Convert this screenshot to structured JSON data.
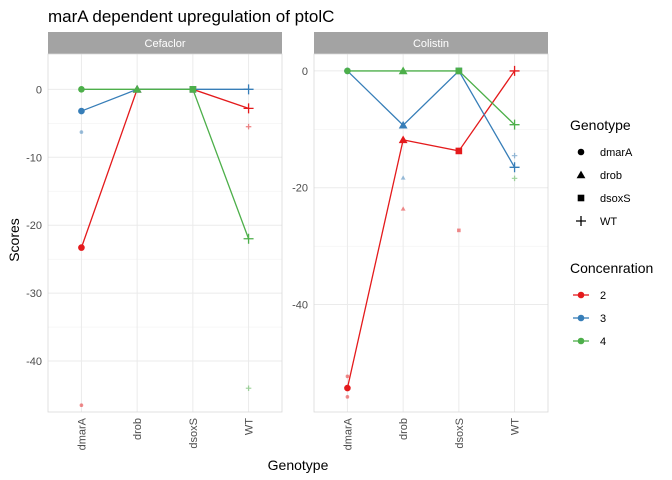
{
  "chart_data": {
    "type": "line",
    "title": "marA dependent upregulation of ptolC",
    "xlabel": "Genotype",
    "ylabel": "Scores",
    "categories": [
      "dmarA",
      "drob",
      "dsoxS",
      "WT"
    ],
    "grid": true,
    "legend_position": "right",
    "legends": [
      {
        "title": "Genotype",
        "kind": "shape",
        "entries": [
          {
            "label": "dmarA",
            "shape": "circle"
          },
          {
            "label": "drob",
            "shape": "triangle"
          },
          {
            "label": "dsoxS",
            "shape": "square"
          },
          {
            "label": "WT",
            "shape": "plus"
          }
        ]
      },
      {
        "title": "Concenration",
        "kind": "color",
        "entries": [
          {
            "label": "2",
            "color": "#E41A1C"
          },
          {
            "label": "3",
            "color": "#377EB8"
          },
          {
            "label": "4",
            "color": "#4DAF4A"
          }
        ]
      }
    ],
    "panels": [
      {
        "strip": "Cefaclor",
        "ylim": [
          -47.5,
          5.2
        ],
        "yticks": [
          0,
          -10,
          -20,
          -30,
          -40
        ],
        "ytick_labels": [
          "0",
          "-10",
          "-20",
          "-30",
          "-40"
        ],
        "series": [
          {
            "concentration": "2",
            "color": "#E41A1C",
            "values": [
              -23.3,
              0,
              0,
              -2.8
            ]
          },
          {
            "concentration": "3",
            "color": "#377EB8",
            "values": [
              -3.2,
              0,
              0,
              0
            ]
          },
          {
            "concentration": "4",
            "color": "#4DAF4A",
            "values": [
              0,
              0,
              0,
              -22.0
            ]
          }
        ],
        "replicates": [
          {
            "category": "dmarA",
            "color": "#E41A1C",
            "value": -46.5
          },
          {
            "category": "dmarA",
            "color": "#377EB8",
            "value": -6.3
          },
          {
            "category": "WT",
            "color": "#E41A1C",
            "value": -5.5
          },
          {
            "category": "WT",
            "color": "#4DAF4A",
            "value": -44.0
          }
        ]
      },
      {
        "strip": "Colistin",
        "ylim": [
          -58.4,
          2.9
        ],
        "yticks": [
          0,
          -20,
          -40
        ],
        "ytick_labels": [
          "0",
          "-20",
          "-40"
        ],
        "series": [
          {
            "concentration": "2",
            "color": "#E41A1C",
            "values": [
              -54.3,
              -11.8,
              -13.7,
              0
            ]
          },
          {
            "concentration": "3",
            "color": "#377EB8",
            "values": [
              0,
              -9.3,
              0,
              -16.5
            ]
          },
          {
            "concentration": "4",
            "color": "#4DAF4A",
            "values": [
              0,
              0,
              0,
              -9.2
            ]
          }
        ],
        "replicates": [
          {
            "category": "dmarA",
            "color": "#E41A1C",
            "value": -55.8
          },
          {
            "category": "dmarA",
            "color": "#E41A1C",
            "value": -52.3
          },
          {
            "category": "drob",
            "color": "#E41A1C",
            "value": -23.6
          },
          {
            "category": "drob",
            "color": "#377EB8",
            "value": -18.3
          },
          {
            "category": "dsoxS",
            "color": "#E41A1C",
            "value": -27.3
          },
          {
            "category": "WT",
            "color": "#377EB8",
            "value": -14.5
          },
          {
            "category": "WT",
            "color": "#4DAF4A",
            "value": -18.4
          }
        ]
      }
    ]
  }
}
